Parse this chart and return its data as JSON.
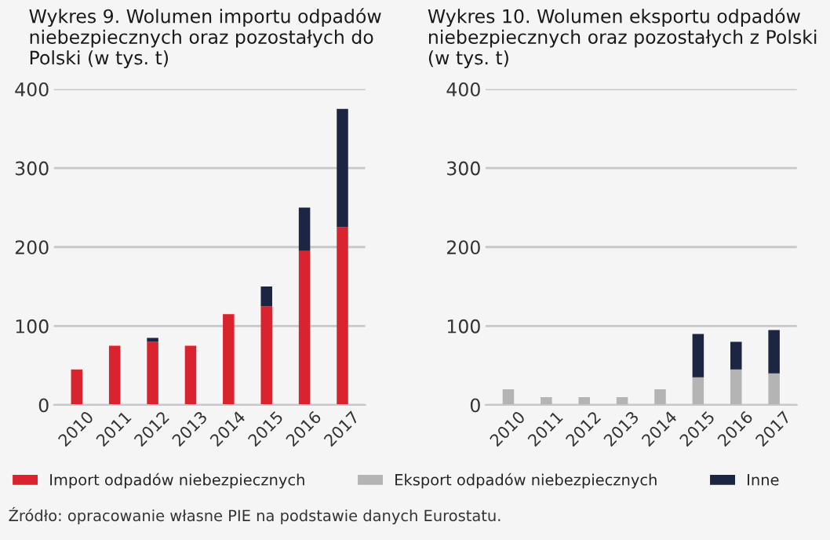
{
  "chart_data": [
    {
      "type": "bar",
      "title": "Wykres 9. Wolumen importu odpadów niebezpiecznych oraz pozostałych do Polski (w tys. t)",
      "categories": [
        "2010",
        "2011",
        "2012",
        "2013",
        "2014",
        "2015",
        "2016",
        "2017"
      ],
      "stacked": true,
      "series": [
        {
          "name": "Import odpadów niebezpiecznych",
          "color": "#d9232e",
          "values": [
            45,
            75,
            80,
            75,
            115,
            125,
            195,
            225
          ]
        },
        {
          "name": "Inne",
          "color": "#1c2541",
          "values": [
            0,
            0,
            5,
            0,
            0,
            25,
            55,
            150
          ]
        }
      ],
      "ylim": [
        0,
        400
      ],
      "yticks": [
        0,
        100,
        200,
        300,
        400
      ],
      "grid": "y",
      "legend": "bottom",
      "annotations": [
        "Źródło: opracowanie własne PIE na podstawie danych Eurostatu."
      ]
    },
    {
      "type": "bar",
      "title": "Wykres 10. Wolumen eksportu odpadów niebezpiecznych oraz pozostałych z Polski (w tys. t)",
      "categories": [
        "2010",
        "2011",
        "2012",
        "2013",
        "2014",
        "2015",
        "2016",
        "2017"
      ],
      "stacked": true,
      "series": [
        {
          "name": "Eksport odpadów niebezpiecznych",
          "color": "#b4b4b4",
          "values": [
            20,
            10,
            10,
            10,
            20,
            35,
            45,
            40
          ]
        },
        {
          "name": "Inne",
          "color": "#1c2541",
          "values": [
            0,
            0,
            0,
            0,
            0,
            55,
            35,
            55
          ]
        }
      ],
      "ylim": [
        0,
        400
      ],
      "yticks": [
        0,
        100,
        200,
        300,
        400
      ],
      "grid": "y",
      "legend": "bottom"
    }
  ]
}
